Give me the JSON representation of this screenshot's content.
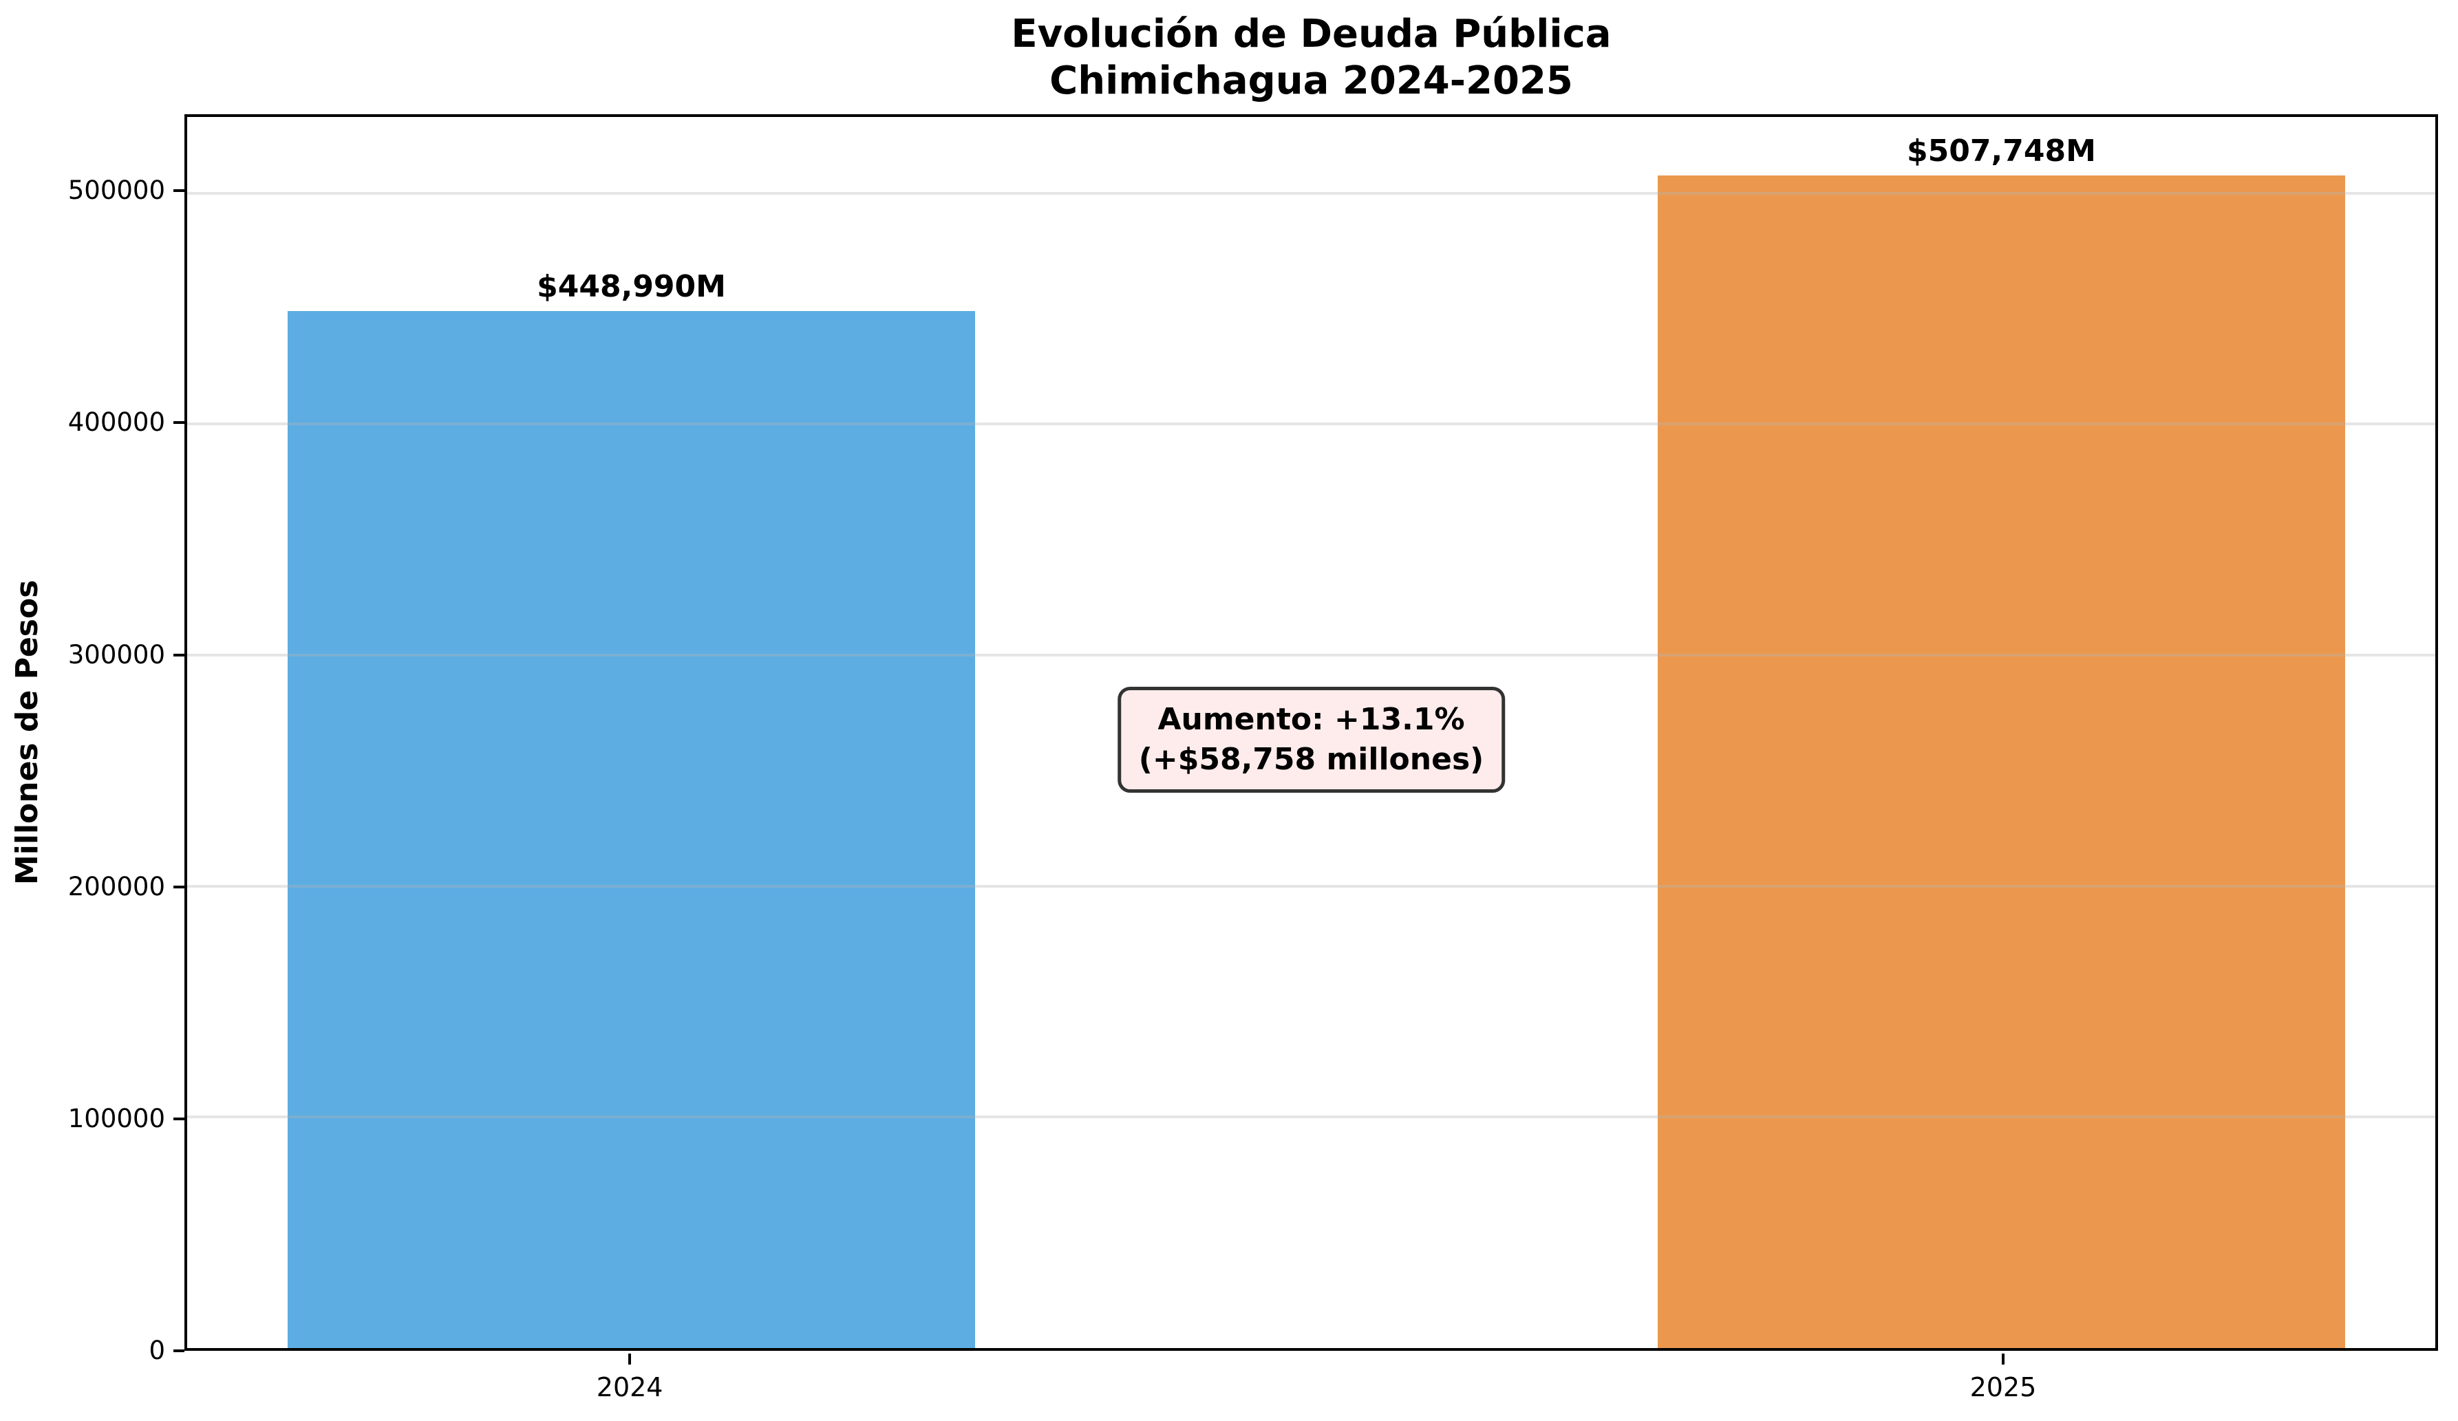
{
  "title": {
    "line1": "Evolución de Deuda Pública",
    "line2": "Chimichagua 2024-2025"
  },
  "y_axis": {
    "label": "Millones de Pesos"
  },
  "annotation": {
    "line1": "Aumento: +13.1%",
    "line2": "(+$58,758 millones)"
  },
  "colors": {
    "bar_2024": "#5dade2",
    "bar_2025": "#eb984e",
    "annotation_bg": "#fdeceb",
    "annotation_border": "#333333"
  },
  "chart_data": {
    "type": "bar",
    "title": "Evolución de Deuda Pública\nChimichagua 2024-2025",
    "xlabel": "",
    "ylabel": "Millones de Pesos",
    "categories": [
      "2024",
      "2025"
    ],
    "values": [
      448990,
      507748
    ],
    "bar_value_labels": [
      "$448,990M",
      "$507,748M"
    ],
    "bar_colors": [
      "#5dade2",
      "#eb984e"
    ],
    "yticks": [
      0,
      100000,
      200000,
      300000,
      400000,
      500000
    ],
    "ylim": [
      0,
      533000
    ],
    "grid": true,
    "grid_axis": "y",
    "legend": false,
    "annotation": "Aumento: +13.1% (+$58,758 millones)"
  }
}
